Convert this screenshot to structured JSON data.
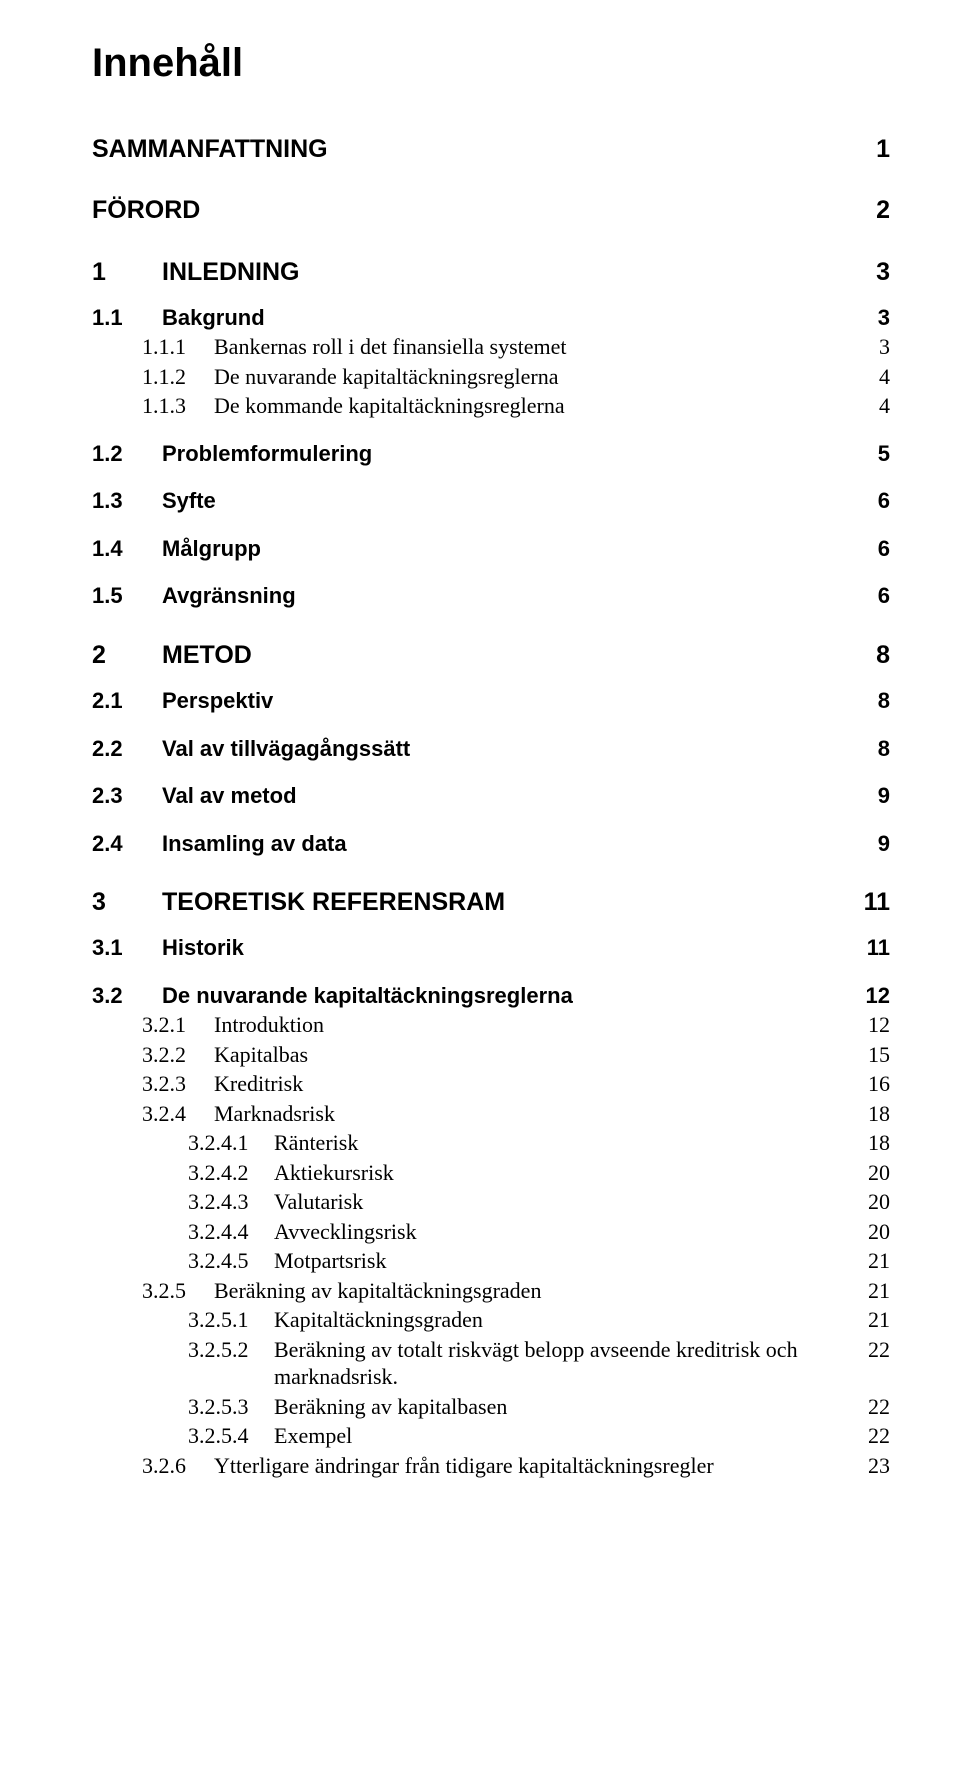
{
  "title": "Innehåll",
  "colors": {
    "text": "#000000",
    "background": "#ffffff"
  },
  "fonts": {
    "heading": "Arial",
    "body": "Times New Roman"
  },
  "toc": [
    {
      "level": 0,
      "num": "",
      "label": "SAMMANFATTNING",
      "page": "1",
      "spaceBefore": 0
    },
    {
      "level": 0,
      "num": "",
      "label": "FÖRORD",
      "page": "2",
      "spaceBefore": 30
    },
    {
      "level": 0,
      "num": "1",
      "label": "INLEDNING",
      "page": "3",
      "spaceBefore": 30
    },
    {
      "level": 1,
      "num": "1.1",
      "label": "Bakgrund",
      "page": "3",
      "spaceBefore": 16
    },
    {
      "level": 2,
      "num": "1.1.1",
      "label": "Bankernas roll i det finansiella systemet",
      "page": "3",
      "spaceBefore": 2
    },
    {
      "level": 2,
      "num": "1.1.2",
      "label": "De nuvarande kapitaltäckningsreglerna",
      "page": "4",
      "spaceBefore": 2
    },
    {
      "level": 2,
      "num": "1.1.3",
      "label": "De kommande kapitaltäckningsreglerna",
      "page": "4",
      "spaceBefore": 2
    },
    {
      "level": 1,
      "num": "1.2",
      "label": "Problemformulering",
      "page": "5",
      "spaceBefore": 20
    },
    {
      "level": 1,
      "num": "1.3",
      "label": "Syfte",
      "page": "6",
      "spaceBefore": 20
    },
    {
      "level": 1,
      "num": "1.4",
      "label": "Målgrupp",
      "page": "6",
      "spaceBefore": 20
    },
    {
      "level": 1,
      "num": "1.5",
      "label": "Avgränsning",
      "page": "6",
      "spaceBefore": 20
    },
    {
      "level": 0,
      "num": "2",
      "label": "METOD",
      "page": "8",
      "spaceBefore": 30
    },
    {
      "level": 1,
      "num": "2.1",
      "label": "Perspektiv",
      "page": "8",
      "spaceBefore": 16
    },
    {
      "level": 1,
      "num": "2.2",
      "label": "Val av tillvägagångssätt",
      "page": "8",
      "spaceBefore": 20
    },
    {
      "level": 1,
      "num": "2.3",
      "label": "Val av metod",
      "page": "9",
      "spaceBefore": 20
    },
    {
      "level": 1,
      "num": "2.4",
      "label": "Insamling av data",
      "page": "9",
      "spaceBefore": 20
    },
    {
      "level": 0,
      "num": "3",
      "label": "TEORETISK REFERENSRAM",
      "page": "11",
      "spaceBefore": 30
    },
    {
      "level": 1,
      "num": "3.1",
      "label": "Historik",
      "page": "11",
      "spaceBefore": 16
    },
    {
      "level": 1,
      "num": "3.2",
      "label": "De nuvarande kapitaltäckningsreglerna",
      "page": "12",
      "spaceBefore": 20
    },
    {
      "level": 2,
      "num": "3.2.1",
      "label": "Introduktion",
      "page": "12",
      "spaceBefore": 2
    },
    {
      "level": 2,
      "num": "3.2.2",
      "label": "Kapitalbas",
      "page": "15",
      "spaceBefore": 2
    },
    {
      "level": 2,
      "num": "3.2.3",
      "label": "Kreditrisk",
      "page": "16",
      "spaceBefore": 2
    },
    {
      "level": 2,
      "num": "3.2.4",
      "label": "Marknadsrisk",
      "page": "18",
      "spaceBefore": 2
    },
    {
      "level": 3,
      "num": "3.2.4.1",
      "label": "Ränterisk",
      "page": "18",
      "spaceBefore": 2
    },
    {
      "level": 3,
      "num": "3.2.4.2",
      "label": "Aktiekursrisk",
      "page": "20",
      "spaceBefore": 2
    },
    {
      "level": 3,
      "num": "3.2.4.3",
      "label": "Valutarisk",
      "page": "20",
      "spaceBefore": 2
    },
    {
      "level": 3,
      "num": "3.2.4.4",
      "label": "Avvecklingsrisk",
      "page": "20",
      "spaceBefore": 2
    },
    {
      "level": 3,
      "num": "3.2.4.5",
      "label": "Motpartsrisk",
      "page": "21",
      "spaceBefore": 2
    },
    {
      "level": 2,
      "num": "3.2.5",
      "label": "Beräkning av kapitaltäckningsgraden",
      "page": "21",
      "spaceBefore": 2
    },
    {
      "level": 3,
      "num": "3.2.5.1",
      "label": "Kapitaltäckningsgraden",
      "page": "21",
      "spaceBefore": 2
    },
    {
      "level": 3,
      "num": "3.2.5.2",
      "label": "Beräkning av totalt riskvägt belopp avseende kreditrisk och marknadsrisk.",
      "page": "22",
      "spaceBefore": 2
    },
    {
      "level": 3,
      "num": "3.2.5.3",
      "label": "Beräkning av kapitalbasen",
      "page": "22",
      "spaceBefore": 2
    },
    {
      "level": 3,
      "num": "3.2.5.4",
      "label": "Exempel",
      "page": "22",
      "spaceBefore": 2
    },
    {
      "level": 2,
      "num": "3.2.6",
      "label": "Ytterligare ändringar från tidigare kapitaltäckningsregler",
      "page": "23",
      "spaceBefore": 2
    }
  ]
}
